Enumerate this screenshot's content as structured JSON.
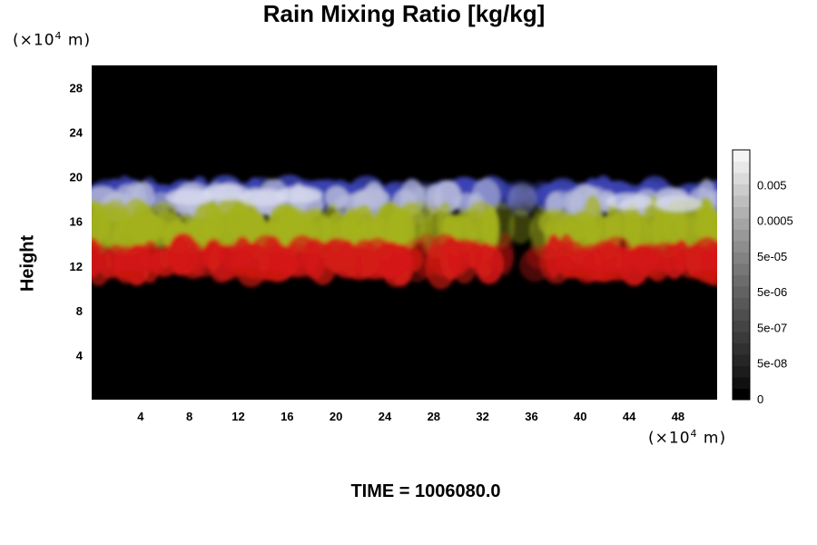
{
  "chart_data": {
    "type": "heatmap",
    "title": "Rain Mixing Ratio [kg/kg]",
    "ylabel": "Height",
    "x_unit": {
      "prefix": "(×10",
      "exp": "4",
      "suffix": " m)"
    },
    "y_unit": {
      "prefix": "(×10",
      "exp": "4",
      "suffix": " m)"
    },
    "x_ticks": [
      4,
      8,
      12,
      16,
      20,
      24,
      28,
      32,
      36,
      40,
      44,
      48
    ],
    "y_ticks": [
      4,
      8,
      12,
      16,
      20,
      24,
      28
    ],
    "xlim": [
      0,
      51.2
    ],
    "ylim": [
      0,
      30
    ],
    "colorbar": {
      "tick_labels": [
        "0.005",
        "0.0005",
        "5e-05",
        "5e-06",
        "5e-07",
        "5e-08",
        "0"
      ],
      "tick_values": [
        0.005,
        0.0005,
        5e-05,
        5e-06,
        5e-07,
        5e-08,
        0
      ],
      "scale": "log",
      "colors": [
        "#000000",
        "#101010",
        "#1c1c1c",
        "#262626",
        "#303030",
        "#3a3a3a",
        "#444444",
        "#4e4e4e",
        "#585858",
        "#626262",
        "#6c6c6c",
        "#777777",
        "#828282",
        "#8d8d8d",
        "#989898",
        "#a4a4a4",
        "#b1b1b1",
        "#bebebe",
        "#cccccc",
        "#dadada",
        "#e8e8e8",
        "#f4f4f4"
      ]
    },
    "layers": [
      {
        "name": "top",
        "color": "#3c44b4",
        "y_range": [
          17.5,
          19.5
        ]
      },
      {
        "name": "upper",
        "color": "#b8bcda",
        "y_range": [
          16.5,
          19
        ]
      },
      {
        "name": "middle",
        "color": "#a4b21e",
        "y_range": [
          13.5,
          17
        ]
      },
      {
        "name": "lower",
        "color": "#d41a14",
        "y_range": [
          11,
          14
        ]
      }
    ],
    "gaps_x": [
      [
        26,
        28
      ],
      [
        33,
        37
      ]
    ]
  },
  "footer": {
    "time_label": "TIME = 1006080.0"
  }
}
